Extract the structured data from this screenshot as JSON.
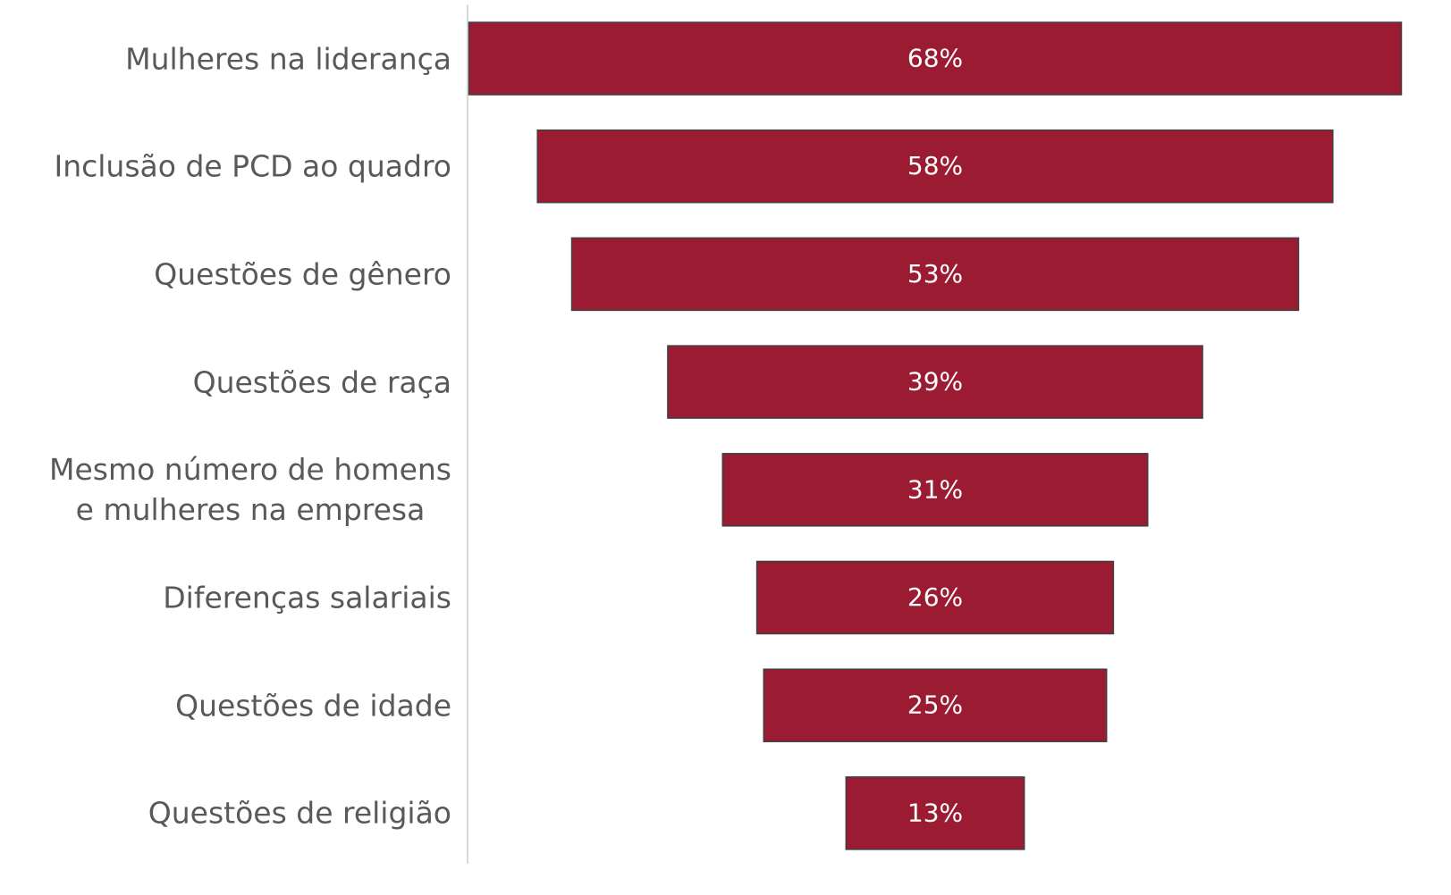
{
  "chart_data": {
    "type": "funnel",
    "categories": [
      "Mulheres na liderança",
      "Inclusão de PCD ao quadro",
      "Questões de gênero",
      "Questões de raça",
      "Mesmo número de homens\ne mulheres na empresa",
      "Diferenças salariais",
      "Questões de idade",
      "Questões de religião"
    ],
    "values": [
      68,
      58,
      53,
      39,
      31,
      26,
      25,
      13
    ],
    "value_labels": [
      "68%",
      "58%",
      "53%",
      "39%",
      "31%",
      "26%",
      "25%",
      "13%"
    ],
    "color": "#9b1b33"
  }
}
